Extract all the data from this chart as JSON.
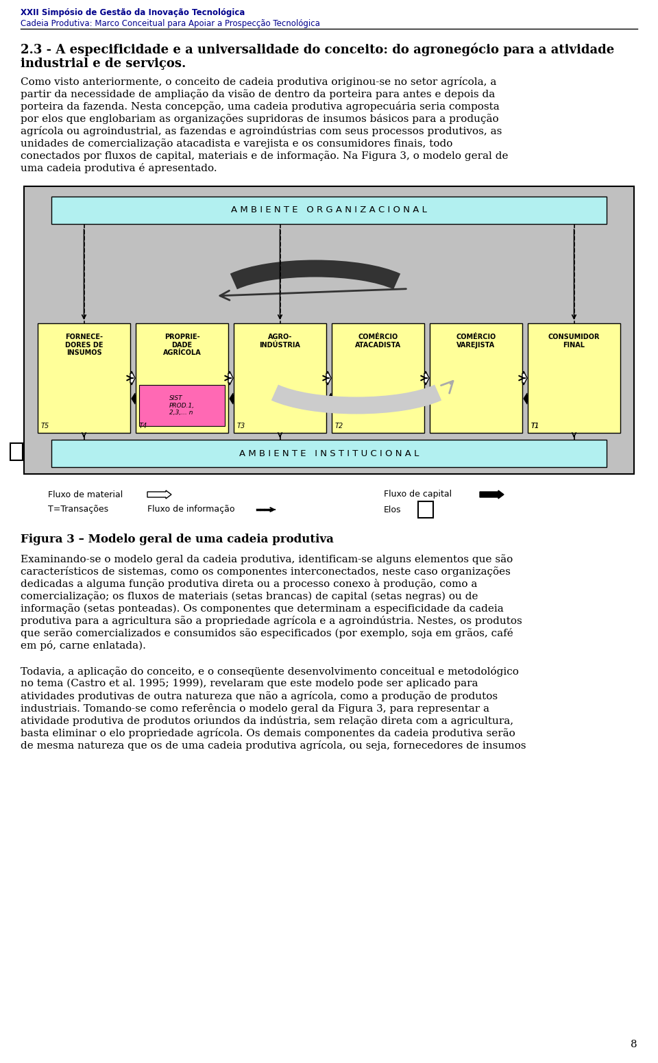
{
  "page_bg": "#ffffff",
  "header_line1": "XXII Simpósio de Gestão da Inovação Tecnológica",
  "header_line2": "Cadeia Produtiva: Marco Conceitual para Apoiar a Prospecção Tecnológica",
  "header_color": "#00008B",
  "section_title": "2.3 - A especificidade e a universalidade do conceito: do agronegócio para a atividade industrial e de serviços.",
  "para1": "Como visto anteriormente, o conceito de cadeia produtiva originou-se no setor agrícola, a partir da necessidade de ampliação da visão de dentro da porteira para antes e depois da porteira da fazenda. Nesta concepção, uma cadeia produtiva agropecuária seria composta por elos que englobariam as organizações supridoras de insumos básicos para a produção agrícola ou agroindustrial, as fazendas e agroindústrias com seus processos produtivos, as unidades de comercialização atacadista e varejista e os consumidores finais, todo conectados por fluxos de capital, materiais e de informação. Na Figura 3, o modelo geral de uma cadeia produtiva é apresentado.",
  "diagram_outer_bg": "#c0c0c0",
  "diagram_outer_border": "#000000",
  "ambient_org_bg": "#b2f0f0",
  "ambient_inst_bg": "#b2f0f0",
  "box_yellow": "#ffff99",
  "box_pink": "#ff69b4",
  "boxes": [
    {
      "label": "FORNECE-\nDORES DE\nINSUMOS",
      "t_label": "T5"
    },
    {
      "label": "PROPRIE-\nDADE\nAGRÍCOLA",
      "t_label": "T4"
    },
    {
      "label": "AGRO-\nINDÚSTRIA",
      "t_label": "T3"
    },
    {
      "label": "COMÉRCIO\nATACADISTA",
      "t_label": "T2"
    },
    {
      "label": "COMÉRCIO\nVAREJISTA",
      "t_label": ""
    },
    {
      "label": "CONSUMIDOR\nFINAL",
      "t_label": "T1"
    }
  ],
  "inner_box_label": "SIST\nPROD.1,\n2,3,... n",
  "legend_items": [
    {
      "label": "Fluxo de material",
      "type": "white_arrow"
    },
    {
      "label": "T=Transações",
      "type": "text_only"
    },
    {
      "label": "Fluxo de informação",
      "type": "dotted_arrow"
    },
    {
      "label": "Fluxo de capital",
      "type": "black_arrow"
    },
    {
      "label": "Elos",
      "type": "elo_box"
    }
  ],
  "fig_caption": "Figura 3 – Modelo geral de uma cadeia produtiva",
  "para2": "Examinando-se o modelo geral da cadeia produtiva, identificam-se alguns elementos que são característicos de sistemas, como os componentes interconectados, neste caso organizações dedicadas a alguma função produtiva direta ou a processo conexo à produção, como a comercialização; os fluxos de materiais (setas brancas) de capital (setas negras) ou de informação (setas ponteadas). Os componentes que determinam a especificidade da cadeia produtiva para a agricultura são a propriedade agrícola e a agroindústria. Nestes, os produtos que serão comercializados e consumidos são especificados (por exemplo, soja em grãos, café em pó, carne enlatada).",
  "para3": "Todavia, a aplicação do conceito, e o conseqüente desenvolvimento conceitual e metodológico no tema (Castro et al. 1995; 1999), revelaram que este modelo pode ser aplicado para atividades produtivas de outra natureza que não a agrícola, como a produção de produtos industriais. Tomando-se como referência o modelo geral da Figura 3, para representar a atividade produtiva de produtos oriundos da indústria, sem relação direta com a agricultura, basta eliminar o elo propriedade agrícola. Os demais componentes da cadeia produtiva serão de mesma natureza que os de uma cadeia produtiva agrícola, ou seja, fornecedores de insumos",
  "page_num": "8"
}
